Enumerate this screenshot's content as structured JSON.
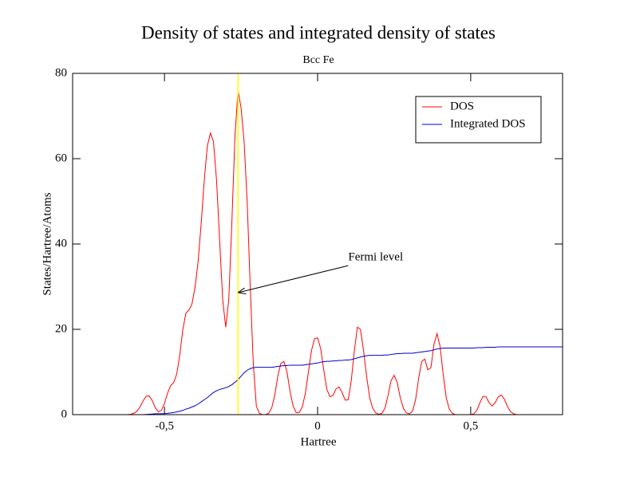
{
  "chart_data": {
    "type": "line",
    "title": "Density of states and integrated density of states",
    "subtitle": "Bcc Fe",
    "x_label": "Hartree",
    "y_label": "States/Hartree/Atoms",
    "xlim": [
      -0.8,
      0.8
    ],
    "ylim": [
      0,
      80
    ],
    "xticks": [
      {
        "value": -0.5,
        "label": "-0,5"
      },
      0,
      {
        "value": 0.5,
        "label": "0,5"
      }
    ],
    "yticks": [
      0,
      20,
      40,
      60,
      80
    ],
    "grid": false,
    "legend": "upper right",
    "vlines": [
      {
        "x": -0.26,
        "color": "#ffff00"
      }
    ],
    "annotations": [
      {
        "text": "Fermi level",
        "x": 0.1,
        "y": 36.8,
        "arrow_x": -0.26,
        "arrow_y": 28.6
      }
    ],
    "x": [
      -0.62,
      -0.61,
      -0.6,
      -0.59,
      -0.58,
      -0.57,
      -0.56,
      -0.55,
      -0.54,
      -0.53,
      -0.52,
      -0.51,
      -0.5,
      -0.49,
      -0.48,
      -0.47,
      -0.46,
      -0.45,
      -0.44,
      -0.43,
      -0.42,
      -0.41,
      -0.4,
      -0.39,
      -0.38,
      -0.37,
      -0.36,
      -0.35,
      -0.34,
      -0.33,
      -0.32,
      -0.31,
      -0.3,
      -0.29,
      -0.28,
      -0.27,
      -0.26,
      -0.25,
      -0.24,
      -0.23,
      -0.22,
      -0.21,
      -0.2,
      -0.19,
      -0.18,
      -0.17,
      -0.16,
      -0.15,
      -0.14,
      -0.13,
      -0.12,
      -0.11,
      -0.1,
      -0.09,
      -0.08,
      -0.07,
      -0.06,
      -0.05,
      -0.04,
      -0.03,
      -0.02,
      -0.01,
      0,
      0.01,
      0.02,
      0.03,
      0.04,
      0.05,
      0.06,
      0.07,
      0.08,
      0.09,
      0.1,
      0.11,
      0.12,
      0.13,
      0.14,
      0.15,
      0.16,
      0.17,
      0.18,
      0.19,
      0.2,
      0.21,
      0.22,
      0.23,
      0.24,
      0.25,
      0.26,
      0.27,
      0.28,
      0.29,
      0.3,
      0.31,
      0.32,
      0.33,
      0.34,
      0.35,
      0.36,
      0.37,
      0.38,
      0.39,
      0.4,
      0.41,
      0.42,
      0.43,
      0.44,
      0.45,
      0.46,
      0.47,
      0.48,
      0.49,
      0.5,
      0.51,
      0.52,
      0.53,
      0.54,
      0.55,
      0.56,
      0.57,
      0.58,
      0.59,
      0.6,
      0.61,
      0.62,
      0.63,
      0.64,
      0.65,
      0.66,
      0.67,
      0.68,
      0.69,
      0.7,
      0.71,
      0.72,
      0.73,
      0.74,
      0.75,
      0.76,
      0.77,
      0.78,
      0.79,
      0.8
    ],
    "series": [
      {
        "name": "DOS",
        "color": "#ff0000",
        "values": [
          0,
          0.1,
          0.3,
          0.8,
          1.8,
          3.2,
          4.3,
          4.4,
          3.3,
          1.6,
          0.7,
          1.0,
          2.6,
          5.0,
          6.8,
          7.5,
          9.5,
          14,
          20,
          23.8,
          24.5,
          26,
          30,
          36,
          45,
          55,
          63,
          66,
          64,
          55,
          41,
          27,
          20.5,
          27,
          45,
          65,
          76,
          72,
          64,
          50,
          30,
          12,
          2,
          0.3,
          0,
          0,
          0.3,
          1.5,
          4.5,
          9,
          12,
          12.5,
          10,
          5.5,
          2,
          0.5,
          0.5,
          1.8,
          5,
          10,
          15,
          17.8,
          18,
          15.5,
          10.5,
          6,
          4.2,
          4.5,
          6,
          6.5,
          5.2,
          3.4,
          3.5,
          8,
          15,
          20.5,
          20,
          15,
          9,
          4,
          1.5,
          0.4,
          0.1,
          0.3,
          1.5,
          4.5,
          8,
          9.2,
          7.5,
          4,
          1.5,
          0.4,
          0.2,
          0.8,
          3.5,
          8.5,
          12.5,
          13,
          10.5,
          11,
          16.5,
          19,
          16,
          9.5,
          4,
          1.3,
          0.3,
          0,
          0,
          0,
          0,
          0,
          0,
          0.2,
          1,
          2.8,
          4.3,
          4.2,
          2.8,
          2,
          2.8,
          4.2,
          4.6,
          3.6,
          1.9,
          0.7,
          0.2,
          0,
          null,
          null,
          null,
          null,
          null,
          null,
          null,
          null,
          null,
          null,
          null,
          null,
          null,
          null,
          null
        ]
      },
      {
        "name": "Integrated DOS",
        "color": "#0000cc",
        "values": [
          null,
          null,
          null,
          null,
          0,
          0,
          0.05,
          0.1,
          0.15,
          0.2,
          0.2,
          0.2,
          0.25,
          0.3,
          0.4,
          0.5,
          0.65,
          0.8,
          1.0,
          1.3,
          1.5,
          1.8,
          2.1,
          2.5,
          3.0,
          3.5,
          4.0,
          4.6,
          5.2,
          5.6,
          5.9,
          6.1,
          6.3,
          6.6,
          7.0,
          7.6,
          8.2,
          9.0,
          9.8,
          10.4,
          10.8,
          11.0,
          11.1,
          11.1,
          11.1,
          11.1,
          11.1,
          11.1,
          11.2,
          11.3,
          11.4,
          11.5,
          11.5,
          11.6,
          11.6,
          11.6,
          11.6,
          11.6,
          11.7,
          11.8,
          11.9,
          12.0,
          12.1,
          12.3,
          12.4,
          12.5,
          12.5,
          12.6,
          12.6,
          12.7,
          12.7,
          12.8,
          12.8,
          12.9,
          13.1,
          13.3,
          13.5,
          13.7,
          13.8,
          13.9,
          13.9,
          13.9,
          13.9,
          13.9,
          14.0,
          14.0,
          14.1,
          14.2,
          14.3,
          14.3,
          14.4,
          14.4,
          14.4,
          14.4,
          14.5,
          14.6,
          14.7,
          14.8,
          14.9,
          15.0,
          15.2,
          15.4,
          15.5,
          15.6,
          15.6,
          15.6,
          15.6,
          15.6,
          15.6,
          15.6,
          15.6,
          15.6,
          15.6,
          15.6,
          15.7,
          15.7,
          15.7,
          15.8,
          15.8,
          15.8,
          15.8,
          15.9,
          15.9,
          15.9,
          15.9,
          15.9,
          15.9,
          15.9,
          15.9,
          15.9,
          15.9,
          15.9,
          15.9,
          15.9,
          15.9,
          15.9,
          15.9,
          15.9,
          15.9,
          15.9,
          15.9,
          15.9,
          15.9
        ]
      }
    ]
  }
}
